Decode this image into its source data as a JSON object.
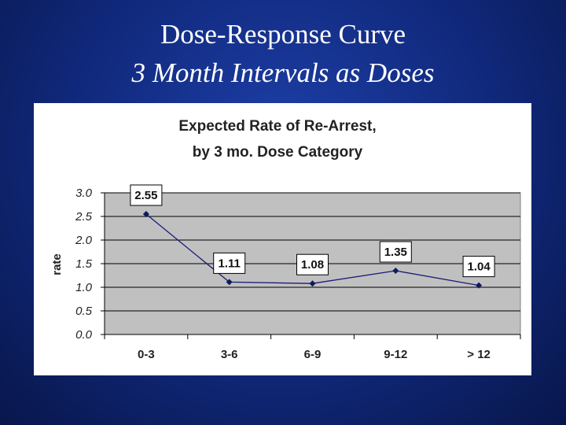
{
  "slide": {
    "title": "Dose-Response Curve",
    "subtitle": "3 Month Intervals as Doses"
  },
  "colors": {
    "background": "#10287a",
    "plot_area": "#c0c0c0",
    "series_line": "#1a1a7a",
    "marker": "#0d1a5e"
  },
  "chart_data": {
    "type": "line",
    "title_lines": [
      "Expected Rate of Re-Arrest,",
      "by 3 mo. Dose Category"
    ],
    "categories": [
      "0-3",
      "3-6",
      "6-9",
      "9-12",
      "> 12"
    ],
    "series": [
      {
        "values": [
          2.55,
          1.11,
          1.08,
          1.35,
          1.04
        ]
      }
    ],
    "data_labels": [
      "2.55",
      "1.11",
      "1.08",
      "1.35",
      "1.04"
    ],
    "yticks": [
      "3.0",
      "2.5",
      "2.0",
      "1.5",
      "1.0",
      "0.5",
      "0.0"
    ],
    "ylabel": "rate",
    "xlabel": "",
    "ylim": [
      0,
      3.0
    ],
    "grid": true,
    "legend": "none",
    "marker": "diamond"
  }
}
